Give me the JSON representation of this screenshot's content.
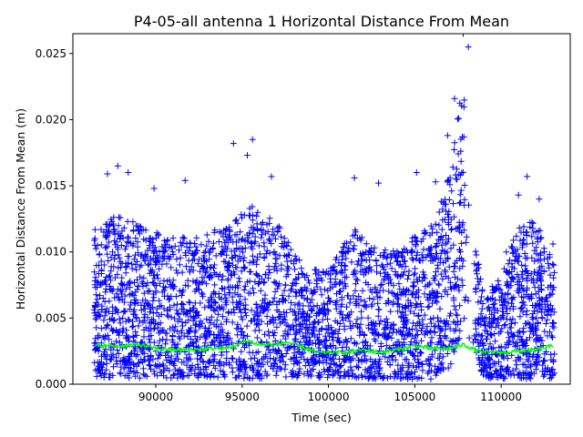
{
  "chart_data": {
    "type": "scatter",
    "title": "P4-05-all antenna 1 Horizontal Distance From Mean",
    "xlabel": "Time (sec)",
    "ylabel": "Horizontal Distance From Mean (m)",
    "xlim": [
      85200,
      114000
    ],
    "ylim": [
      0,
      0.0265
    ],
    "x_ticks": [
      90000,
      95000,
      100000,
      105000,
      110000
    ],
    "x_tick_labels": [
      "90000",
      "95000",
      "100000",
      "105000",
      "110000"
    ],
    "y_ticks": [
      0,
      0.005,
      0.01,
      0.015,
      0.02,
      0.025
    ],
    "y_tick_labels": [
      "0.000",
      "0.005",
      "0.010",
      "0.015",
      "0.020",
      "0.025"
    ],
    "colors": {
      "points": "#0000ff",
      "mean_line": "#00ff00",
      "axes": "#000000"
    },
    "series": [
      {
        "name": "horizontal distance from mean",
        "marker": "+",
        "color": "#0000ff",
        "x_range": [
          86400,
          113100
        ],
        "gap": [
          107900,
          108500
        ],
        "peak_values": [
          {
            "x": 87200,
            "y": 0.0159
          },
          {
            "x": 87800,
            "y": 0.0165
          },
          {
            "x": 88400,
            "y": 0.016
          },
          {
            "x": 89900,
            "y": 0.0148
          },
          {
            "x": 91700,
            "y": 0.0154
          },
          {
            "x": 94500,
            "y": 0.0182
          },
          {
            "x": 95300,
            "y": 0.0173
          },
          {
            "x": 95600,
            "y": 0.0185
          },
          {
            "x": 96700,
            "y": 0.0157
          },
          {
            "x": 101500,
            "y": 0.0156
          },
          {
            "x": 102900,
            "y": 0.0152
          },
          {
            "x": 105100,
            "y": 0.016
          },
          {
            "x": 106200,
            "y": 0.0153
          },
          {
            "x": 106900,
            "y": 0.0188
          },
          {
            "x": 107300,
            "y": 0.0216
          },
          {
            "x": 107800,
            "y": 0.0265
          },
          {
            "x": 108100,
            "y": 0.0255
          },
          {
            "x": 110300,
            "y": 0.01
          },
          {
            "x": 111000,
            "y": 0.0143
          },
          {
            "x": 111500,
            "y": 0.0157
          },
          {
            "x": 112200,
            "y": 0.014
          },
          {
            "x": 113000,
            "y": 0.0106
          }
        ],
        "envelope": [
          {
            "x": 86400,
            "lo": 0.0005,
            "hi": 0.012
          },
          {
            "x": 88000,
            "lo": 0.0005,
            "hi": 0.013
          },
          {
            "x": 90000,
            "lo": 0.0004,
            "hi": 0.0115
          },
          {
            "x": 92000,
            "lo": 0.0005,
            "hi": 0.011
          },
          {
            "x": 94000,
            "lo": 0.0005,
            "hi": 0.012
          },
          {
            "x": 95500,
            "lo": 0.0004,
            "hi": 0.0135
          },
          {
            "x": 97000,
            "lo": 0.0004,
            "hi": 0.0125
          },
          {
            "x": 98500,
            "lo": 0.0005,
            "hi": 0.009
          },
          {
            "x": 100000,
            "lo": 0.0005,
            "hi": 0.0085
          },
          {
            "x": 101500,
            "lo": 0.0004,
            "hi": 0.012
          },
          {
            "x": 103000,
            "lo": 0.0004,
            "hi": 0.01
          },
          {
            "x": 104500,
            "lo": 0.0004,
            "hi": 0.011
          },
          {
            "x": 106000,
            "lo": 0.0004,
            "hi": 0.012
          },
          {
            "x": 107000,
            "lo": 0.001,
            "hi": 0.016
          },
          {
            "x": 107800,
            "lo": 0.004,
            "hi": 0.023
          },
          {
            "x": 108300,
            "lo": 0.003,
            "hi": 0.012
          },
          {
            "x": 109000,
            "lo": 0.0004,
            "hi": 0.007
          },
          {
            "x": 110000,
            "lo": 0.0004,
            "hi": 0.008
          },
          {
            "x": 111200,
            "lo": 0.0004,
            "hi": 0.013
          },
          {
            "x": 112200,
            "lo": 0.0004,
            "hi": 0.012
          },
          {
            "x": 113100,
            "lo": 0.0004,
            "hi": 0.009
          }
        ]
      },
      {
        "name": "running mean",
        "type": "line",
        "color": "#00ff00",
        "x": [
          86500,
          88000,
          89000,
          90000,
          91000,
          92000,
          93000,
          94000,
          94800,
          95300,
          96000,
          97000,
          97600,
          98500,
          99300,
          100000,
          101000,
          102000,
          103000,
          104000,
          105000,
          106000,
          107000,
          107800,
          108500,
          109000,
          110000,
          111000,
          112000,
          113000
        ],
        "values": [
          0.0029,
          0.0029,
          0.003,
          0.0027,
          0.0026,
          0.0026,
          0.0027,
          0.0027,
          0.003,
          0.0033,
          0.003,
          0.003,
          0.0032,
          0.0028,
          0.0024,
          0.0024,
          0.0024,
          0.0026,
          0.0024,
          0.0026,
          0.0029,
          0.0027,
          0.0027,
          0.003,
          0.0026,
          0.0024,
          0.0024,
          0.0025,
          0.0026,
          0.0029
        ]
      }
    ]
  }
}
